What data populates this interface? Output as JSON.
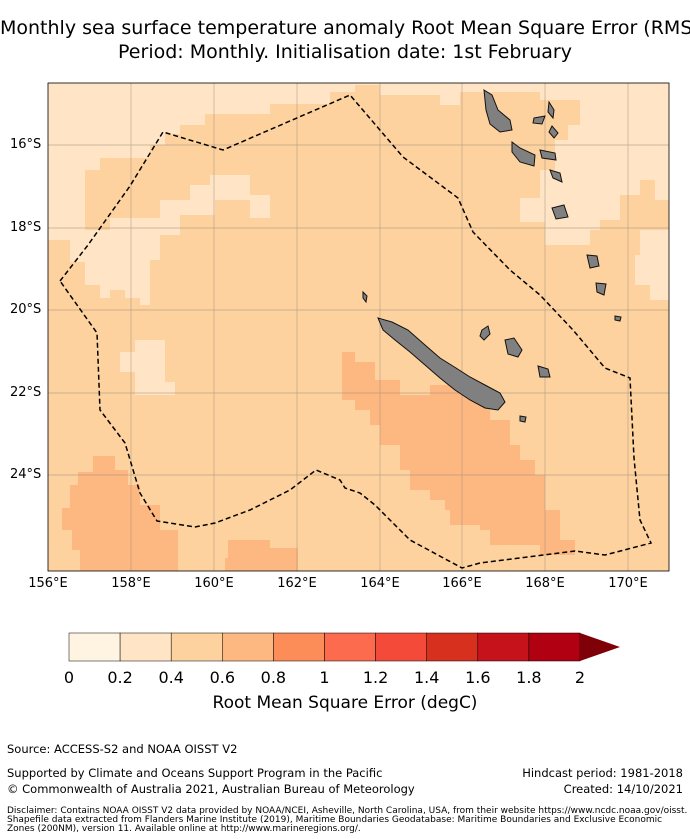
{
  "title": {
    "line1": "Monthly sea surface temperature anomaly Root Mean Square Error (RMSE)",
    "line2": "Period: Monthly. Initialisation date: 1st February"
  },
  "map": {
    "lat_labels": [
      "16°S",
      "18°S",
      "20°S",
      "22°S",
      "24°S"
    ],
    "lon_labels": [
      "156°E",
      "158°E",
      "160°E",
      "162°E",
      "164°E",
      "166°E",
      "168°E",
      "170°E"
    ],
    "extent": {
      "lon_min": 156,
      "lon_max": 171,
      "lat_min": -26.3,
      "lat_max": -14.6
    },
    "land_color": "#808080",
    "eez_boundary": "dashed black"
  },
  "colorbar": {
    "ticks": [
      "0",
      "0.2",
      "0.4",
      "0.6",
      "0.8",
      "1",
      "1.2",
      "1.4",
      "1.6",
      "1.8",
      "2"
    ],
    "colors": [
      "#fff3e1",
      "#ffe5c6",
      "#fdd29f",
      "#fdb882",
      "#fc8d59",
      "#fc6b4e",
      "#f44a3a",
      "#d7301f",
      "#c6121b",
      "#b00012"
    ],
    "extend_color": "#7f0006",
    "label": "Root Mean Square Error (degC)"
  },
  "footer": {
    "source": "Source: ACCESS-S2 and NOAA OISST V2",
    "support": "Supported by Climate and Oceans Support Program in the Pacific",
    "copyright": "© Commonwealth of Australia 2021, Australian Bureau of Meteorology",
    "hindcast": "Hindcast period: 1981-2018",
    "created": "Created: 14/10/2021",
    "disclaimer1": "Disclaimer: Contains NOAA OISST V2 data provided by NOAA/NCEI, Asheville, North Carolina, USA, from their website https://www.ncdc.noaa.gov/oisst.",
    "disclaimer2": "Shapefile data extracted from Flanders Marine Institute (2019), Maritime Boundaries Geodatabase: Maritime Boundaries and Exclusive Economic",
    "disclaimer3": "Zones (200NM), version 11. Available online at http://www.marineregions.org/."
  }
}
